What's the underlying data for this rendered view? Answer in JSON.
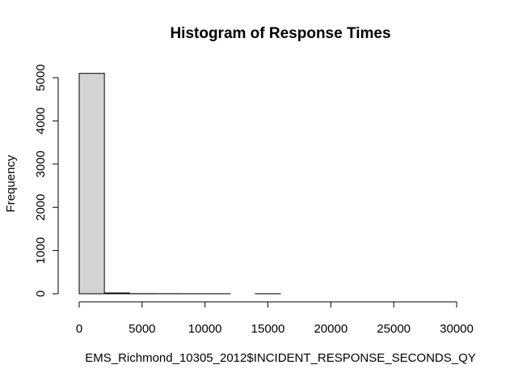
{
  "chart_data": {
    "type": "bar",
    "title": "Histogram of Response Times",
    "xlabel": "EMS_Richmond_10305_2012$INCIDENT_RESPONSE_SECONDS_QY",
    "ylabel": "Frequency",
    "bin_width": 2000,
    "bins": [
      {
        "x0": 0,
        "x1": 2000,
        "value": 5100
      },
      {
        "x0": 2000,
        "x1": 4000,
        "value": 18
      },
      {
        "x0": 4000,
        "x1": 6000,
        "value": 3
      },
      {
        "x0": 6000,
        "x1": 8000,
        "value": 2
      },
      {
        "x0": 8000,
        "x1": 10000,
        "value": 1
      },
      {
        "x0": 10000,
        "x1": 12000,
        "value": 1
      },
      {
        "x0": 12000,
        "x1": 14000,
        "value": 0
      },
      {
        "x0": 14000,
        "x1": 16000,
        "value": 1
      },
      {
        "x0": 16000,
        "x1": 18000,
        "value": 0
      },
      {
        "x0": 18000,
        "x1": 20000,
        "value": 0
      },
      {
        "x0": 20000,
        "x1": 22000,
        "value": 0
      },
      {
        "x0": 22000,
        "x1": 24000,
        "value": 0
      },
      {
        "x0": 24000,
        "x1": 26000,
        "value": 0
      },
      {
        "x0": 26000,
        "x1": 28000,
        "value": 0
      },
      {
        "x0": 28000,
        "x1": 30000,
        "value": 0
      },
      {
        "x0": 30000,
        "x1": 32000,
        "value": 0
      }
    ],
    "x_ticks": [
      0,
      5000,
      10000,
      15000,
      20000,
      25000,
      30000
    ],
    "y_ticks": [
      0,
      1000,
      2000,
      3000,
      4000,
      5000
    ],
    "xlim": [
      0,
      32000
    ],
    "ylim": [
      0,
      5100
    ],
    "grid": false,
    "bar_fill": "#d3d3d3",
    "bar_stroke": "#000000"
  }
}
